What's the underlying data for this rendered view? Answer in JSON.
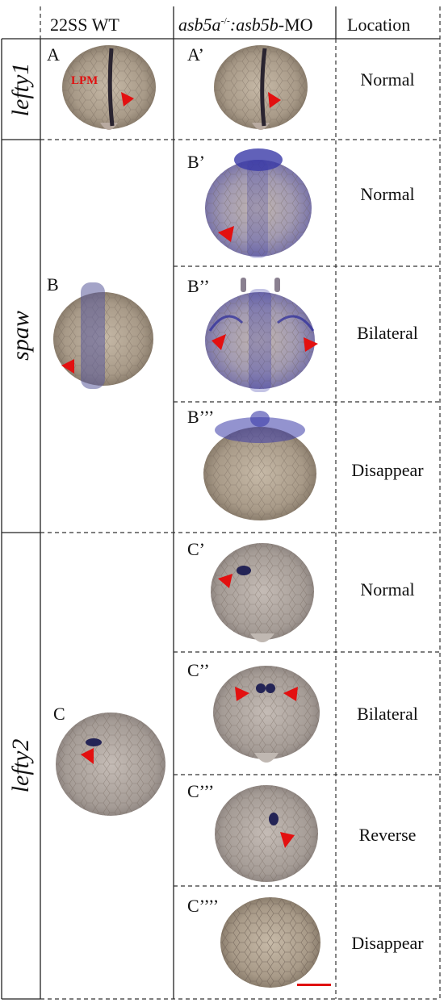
{
  "header": {
    "col1": "22SS  WT",
    "col2_a": "asb5a",
    "col2_sup": "-/-",
    "col2_b": ":asb5b",
    "col2_c": "-MO",
    "col3": "Location"
  },
  "rows": [
    {
      "gene": "lefty1"
    },
    {
      "gene": "spaw"
    },
    {
      "gene": "lefty2"
    }
  ],
  "panels": {
    "A": "A",
    "A1": "A’",
    "lpm": "LPM",
    "B": "B",
    "B1": "B’",
    "B2": "B’’",
    "B3": "B’’’",
    "C": "C",
    "C1": "C’",
    "C2": "C’’",
    "C3": "C’’’",
    "C4": "C’’’’"
  },
  "locations": {
    "A1": "Normal",
    "B1": "Normal",
    "B2": "Bilateral",
    "B3": "Disappear",
    "C1": "Normal",
    "C2": "Bilateral",
    "C3": "Reverse",
    "C4": "Disappear"
  },
  "colors": {
    "arrow": "#e31010",
    "embryo": "#b8aa9c",
    "stain": "#3a3aa0",
    "scale_bar": "#e01010"
  }
}
